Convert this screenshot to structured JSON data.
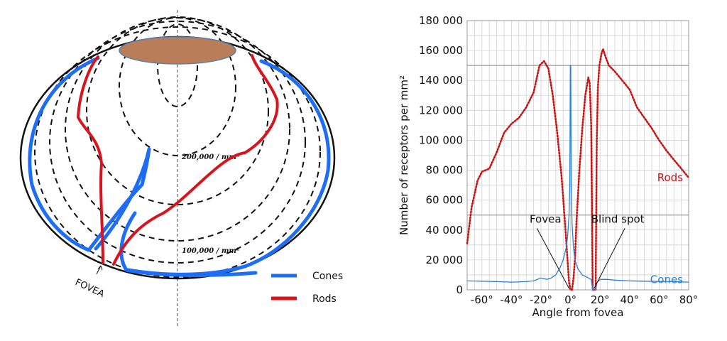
{
  "diagram": {
    "iso_labels": [
      "200,000 / mm²",
      "100,000 / mm²"
    ],
    "fovea_label": "FOVEA",
    "legend": [
      {
        "label": "Cones",
        "color": "#1e6ef5"
      },
      {
        "label": "Rods",
        "color": "#d8141e"
      }
    ],
    "cap_color": "#b97d5a"
  },
  "chart_data": {
    "type": "line",
    "xlabel": "Angle from fovea",
    "ylabel": "Number of receptors per mm²",
    "xlim": [
      -70,
      80
    ],
    "ylim": [
      0,
      180000
    ],
    "x_ticks": [
      -60,
      -40,
      -20,
      0,
      20,
      40,
      60,
      80
    ],
    "x_tick_labels": [
      "-60°",
      "-40°",
      "-20°",
      "0°",
      "20°",
      "40°",
      "60°",
      "80°"
    ],
    "y_ticks": [
      0,
      20000,
      40000,
      60000,
      80000,
      100000,
      120000,
      140000,
      160000,
      180000
    ],
    "y_tick_labels": [
      "0",
      "20 000",
      "40 000",
      "60 000",
      "80 000",
      "100 000",
      "120 000",
      "140 000",
      "160 000",
      "180 000"
    ],
    "grid": true,
    "series": [
      {
        "name": "Rods",
        "color": "#cc1111",
        "style": "dotted",
        "label_at": [
          80,
          75000
        ],
        "points": [
          [
            -70,
            31000
          ],
          [
            -67,
            55000
          ],
          [
            -63,
            73000
          ],
          [
            -60,
            79000
          ],
          [
            -55,
            81000
          ],
          [
            -50,
            92000
          ],
          [
            -45,
            105000
          ],
          [
            -40,
            111000
          ],
          [
            -35,
            115000
          ],
          [
            -30,
            122000
          ],
          [
            -25,
            132000
          ],
          [
            -21,
            150000
          ],
          [
            -18,
            153000
          ],
          [
            -15,
            148000
          ],
          [
            -12,
            130000
          ],
          [
            -9,
            105000
          ],
          [
            -6,
            75000
          ],
          [
            -4,
            48000
          ],
          [
            -2,
            20000
          ],
          [
            -1,
            5000
          ],
          [
            0,
            0
          ],
          [
            1,
            0
          ],
          [
            2,
            8000
          ],
          [
            3,
            20000
          ],
          [
            4,
            45000
          ],
          [
            6,
            80000
          ],
          [
            8,
            108000
          ],
          [
            10,
            130000
          ],
          [
            12,
            142000
          ],
          [
            13,
            138000
          ],
          [
            14,
            110000
          ],
          [
            14.5,
            55000
          ],
          [
            15,
            0
          ],
          [
            17,
            0
          ],
          [
            17.3,
            40000
          ],
          [
            17.8,
            100000
          ],
          [
            18.5,
            135000
          ],
          [
            19.5,
            150000
          ],
          [
            21,
            158000
          ],
          [
            22,
            161000
          ],
          [
            24,
            155000
          ],
          [
            26,
            150000
          ],
          [
            30,
            146000
          ],
          [
            35,
            140000
          ],
          [
            40,
            134000
          ],
          [
            45,
            122000
          ],
          [
            50,
            115000
          ],
          [
            55,
            108000
          ],
          [
            60,
            100000
          ],
          [
            65,
            93000
          ],
          [
            70,
            87000
          ],
          [
            75,
            81000
          ],
          [
            80,
            75000
          ]
        ]
      },
      {
        "name": "Cones",
        "color": "#2a7fd6",
        "style": "solid",
        "label_at": [
          80,
          7000
        ],
        "points": [
          [
            -70,
            6000
          ],
          [
            -60,
            5800
          ],
          [
            -50,
            5500
          ],
          [
            -40,
            5200
          ],
          [
            -30,
            5500
          ],
          [
            -25,
            6000
          ],
          [
            -20,
            8000
          ],
          [
            -16,
            7000
          ],
          [
            -13,
            8000
          ],
          [
            -10,
            10000
          ],
          [
            -7,
            15000
          ],
          [
            -5,
            20000
          ],
          [
            -3,
            28000
          ],
          [
            -2,
            35000
          ],
          [
            -1,
            50000
          ],
          [
            -0.5,
            70000
          ],
          [
            -0.15,
            150000
          ],
          [
            0.15,
            150000
          ],
          [
            0.5,
            70000
          ],
          [
            1,
            45000
          ],
          [
            2,
            28000
          ],
          [
            3,
            20000
          ],
          [
            5,
            14000
          ],
          [
            8,
            10000
          ],
          [
            12,
            8000
          ],
          [
            14,
            7000
          ],
          [
            15,
            0
          ],
          [
            17,
            0
          ],
          [
            18,
            5000
          ],
          [
            20,
            7000
          ],
          [
            25,
            7000
          ],
          [
            30,
            6500
          ],
          [
            40,
            6000
          ],
          [
            50,
            5800
          ],
          [
            60,
            5600
          ],
          [
            70,
            5500
          ],
          [
            80,
            5200
          ]
        ]
      }
    ],
    "annotations": [
      {
        "text": "Fovea",
        "at": [
          -17,
          45000
        ],
        "points_to": [
          -1,
          1000
        ]
      },
      {
        "text": "Blind spot",
        "at": [
          32,
          45000
        ],
        "points_to": [
          16,
          1000
        ]
      }
    ]
  }
}
